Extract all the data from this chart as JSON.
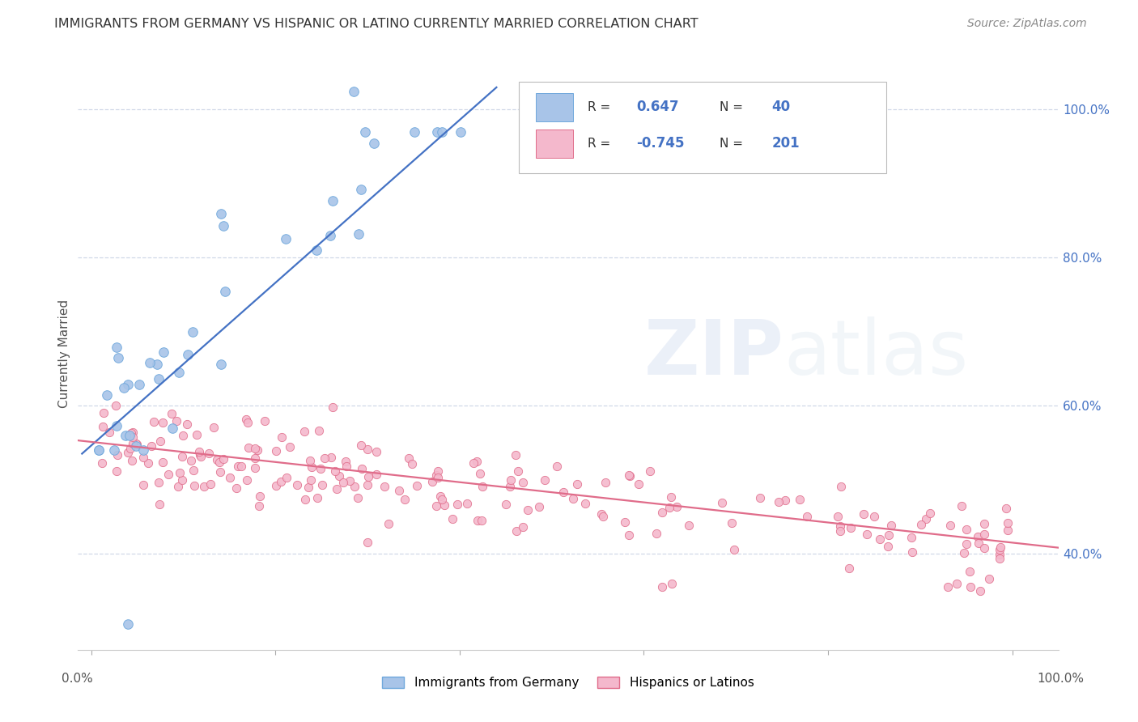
{
  "title": "IMMIGRANTS FROM GERMANY VS HISPANIC OR LATINO CURRENTLY MARRIED CORRELATION CHART",
  "source": "Source: ZipAtlas.com",
  "ylabel": "Currently Married",
  "r_blue": 0.647,
  "n_blue": 40,
  "r_pink": -0.745,
  "n_pink": 201,
  "blue_face": "#a8c4e8",
  "blue_edge": "#6fa8dc",
  "pink_face": "#f4b8cc",
  "pink_edge": "#e06c8a",
  "line_blue": "#4472c4",
  "line_pink": "#e06c8a",
  "yticks": [
    0.4,
    0.6,
    0.8,
    1.0
  ],
  "ytick_labels": [
    "40.0%",
    "60.0%",
    "80.0%",
    "100.0%"
  ],
  "ylim": [
    0.27,
    1.07
  ],
  "xlim": [
    -0.015,
    1.05
  ],
  "grid_color": "#d0d8e8",
  "tick_label_color": "#4472c4"
}
